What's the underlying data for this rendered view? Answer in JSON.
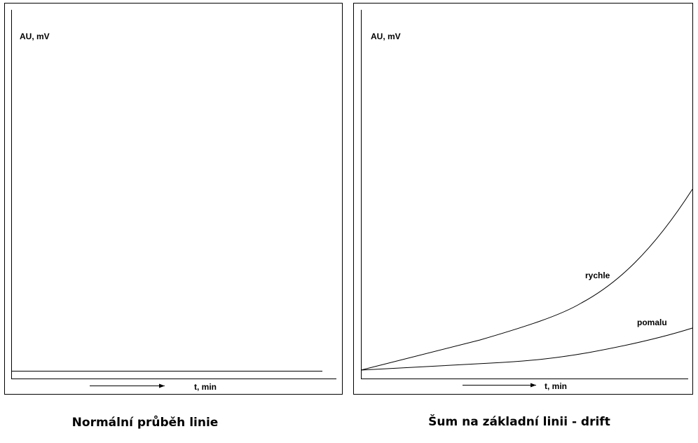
{
  "panels": [
    {
      "caption": "Normální průběh linie",
      "y_axis_label": "AU, mV",
      "x_axis_label": "t, min"
    },
    {
      "caption": "Šum na základní linii - drift",
      "y_axis_label": "AU, mV",
      "x_axis_label": "t, min",
      "curves": [
        {
          "label": "rychle"
        },
        {
          "label": "pomalu"
        }
      ]
    }
  ]
}
